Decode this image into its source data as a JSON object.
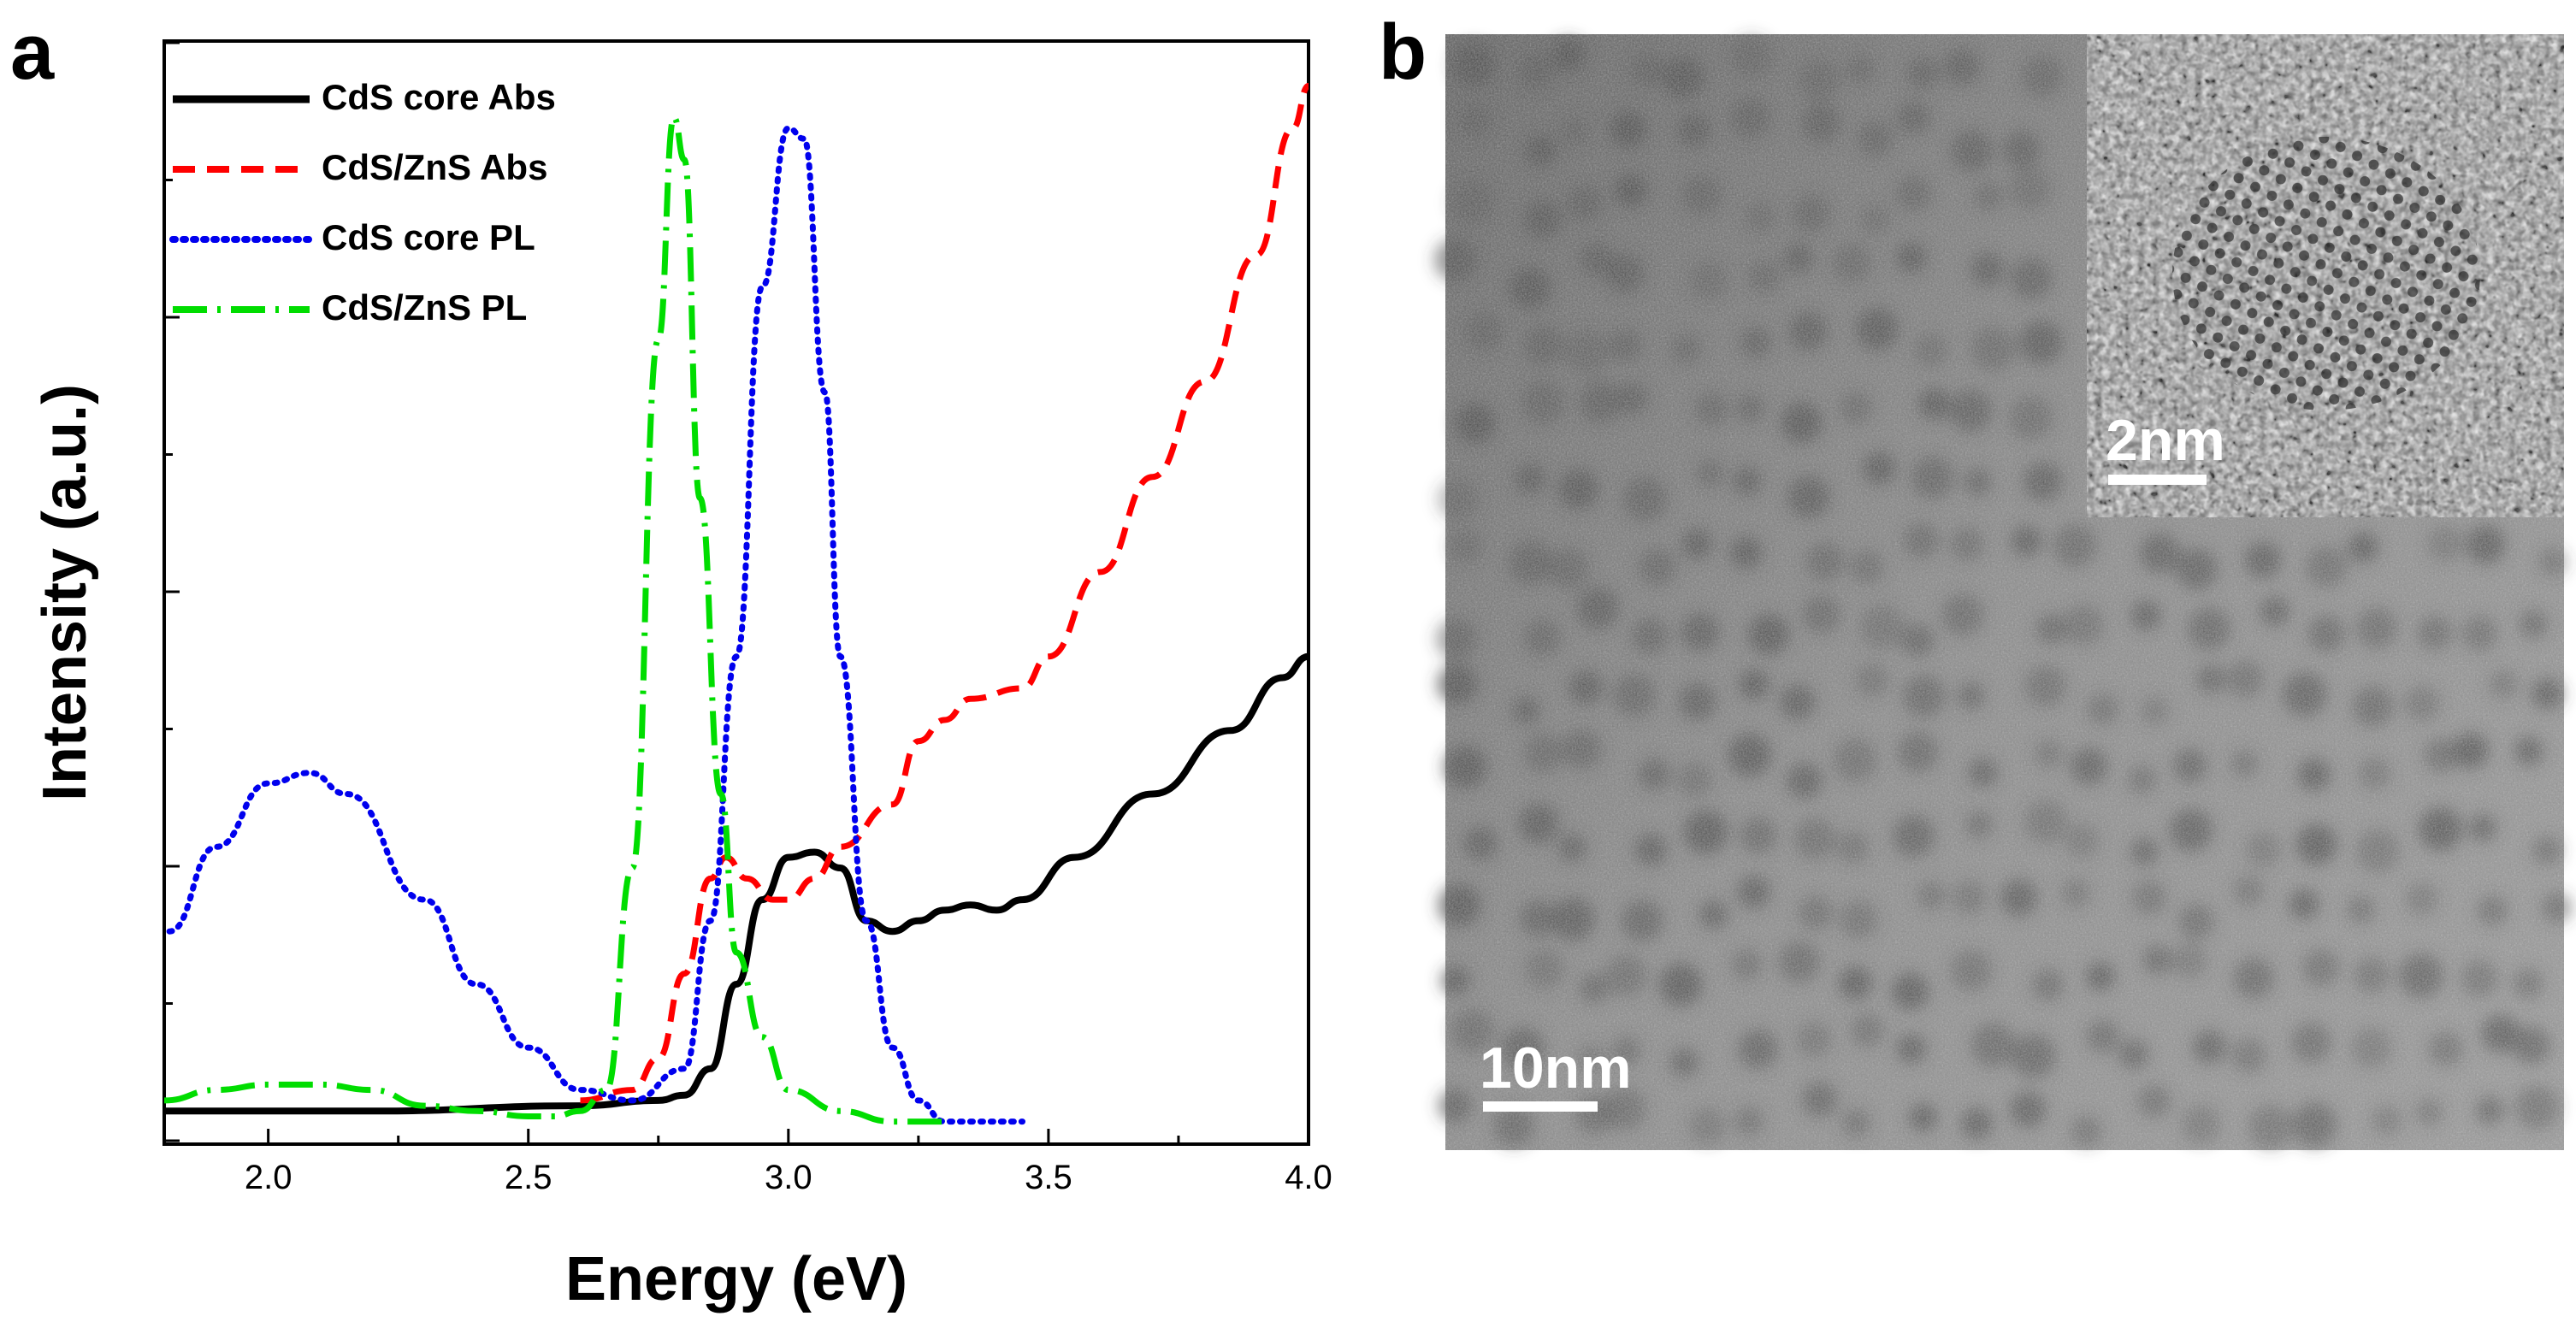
{
  "panel_a": {
    "label": "a"
  },
  "panel_b": {
    "label": "b",
    "scale_bar_main": "10nm",
    "scale_bar_inset": "2nm"
  },
  "colors": {
    "cds_core_abs": "#000000",
    "cds_zns_abs": "#ff0000",
    "cds_core_pl": "#0000ee",
    "cds_zns_pl": "#00dd00"
  },
  "chart_data": {
    "type": "line",
    "title": "",
    "xlabel": "Energy (eV)",
    "ylabel": "Intensity (a.u.)",
    "xlim": [
      1.8,
      4.0
    ],
    "ylim": [
      0,
      1.0
    ],
    "x_ticks": [
      "2.0",
      "2.5",
      "3.0",
      "3.5",
      "4.0"
    ],
    "x_tick_values": [
      2.0,
      2.5,
      3.0,
      3.5,
      4.0
    ],
    "y_tick_labels_shown": false,
    "legend_position": "top-left",
    "series": [
      {
        "name": "CdS core Abs",
        "style": "solid",
        "color": "#000000",
        "points": [
          [
            1.8,
            0.02
          ],
          [
            2.2,
            0.02
          ],
          [
            2.6,
            0.025
          ],
          [
            2.75,
            0.03
          ],
          [
            2.8,
            0.035
          ],
          [
            2.85,
            0.06
          ],
          [
            2.9,
            0.14
          ],
          [
            2.95,
            0.22
          ],
          [
            3.0,
            0.26
          ],
          [
            3.05,
            0.265
          ],
          [
            3.1,
            0.25
          ],
          [
            3.15,
            0.2
          ],
          [
            3.2,
            0.19
          ],
          [
            3.25,
            0.2
          ],
          [
            3.3,
            0.21
          ],
          [
            3.35,
            0.215
          ],
          [
            3.4,
            0.21
          ],
          [
            3.45,
            0.22
          ],
          [
            3.55,
            0.26
          ],
          [
            3.7,
            0.32
          ],
          [
            3.85,
            0.38
          ],
          [
            3.95,
            0.43
          ],
          [
            4.0,
            0.45
          ]
        ]
      },
      {
        "name": "CdS/ZnS  Abs",
        "style": "dashed",
        "color": "#ff0000",
        "points": [
          [
            2.6,
            0.03
          ],
          [
            2.7,
            0.04
          ],
          [
            2.75,
            0.07
          ],
          [
            2.8,
            0.15
          ],
          [
            2.85,
            0.24
          ],
          [
            2.88,
            0.26
          ],
          [
            2.92,
            0.24
          ],
          [
            2.97,
            0.22
          ],
          [
            3.0,
            0.22
          ],
          [
            3.05,
            0.24
          ],
          [
            3.1,
            0.27
          ],
          [
            3.2,
            0.31
          ],
          [
            3.25,
            0.37
          ],
          [
            3.3,
            0.39
          ],
          [
            3.35,
            0.41
          ],
          [
            3.45,
            0.42
          ],
          [
            3.5,
            0.45
          ],
          [
            3.6,
            0.53
          ],
          [
            3.7,
            0.62
          ],
          [
            3.8,
            0.71
          ],
          [
            3.9,
            0.83
          ],
          [
            3.97,
            0.95
          ],
          [
            4.0,
            0.99
          ]
        ]
      },
      {
        "name": "CdS core PL",
        "style": "dotted",
        "color": "#0000ee",
        "points": [
          [
            1.81,
            0.19
          ],
          [
            1.9,
            0.27
          ],
          [
            2.0,
            0.33
          ],
          [
            2.08,
            0.34
          ],
          [
            2.15,
            0.32
          ],
          [
            2.3,
            0.22
          ],
          [
            2.4,
            0.14
          ],
          [
            2.5,
            0.08
          ],
          [
            2.6,
            0.04
          ],
          [
            2.7,
            0.03
          ],
          [
            2.8,
            0.06
          ],
          [
            2.85,
            0.2
          ],
          [
            2.9,
            0.45
          ],
          [
            2.95,
            0.8
          ],
          [
            3.0,
            0.95
          ],
          [
            3.03,
            0.94
          ],
          [
            3.07,
            0.7
          ],
          [
            3.1,
            0.45
          ],
          [
            3.15,
            0.2
          ],
          [
            3.2,
            0.08
          ],
          [
            3.25,
            0.03
          ],
          [
            3.3,
            0.01
          ],
          [
            3.45,
            0.01
          ]
        ]
      },
      {
        "name": "CdS/ZnS  PL",
        "style": "dashdot",
        "color": "#00dd00",
        "points": [
          [
            1.8,
            0.03
          ],
          [
            1.9,
            0.04
          ],
          [
            2.0,
            0.045
          ],
          [
            2.1,
            0.045
          ],
          [
            2.2,
            0.04
          ],
          [
            2.3,
            0.025
          ],
          [
            2.4,
            0.02
          ],
          [
            2.5,
            0.015
          ],
          [
            2.55,
            0.015
          ],
          [
            2.6,
            0.02
          ],
          [
            2.65,
            0.04
          ],
          [
            2.7,
            0.25
          ],
          [
            2.75,
            0.75
          ],
          [
            2.78,
            0.96
          ],
          [
            2.8,
            0.92
          ],
          [
            2.83,
            0.6
          ],
          [
            2.87,
            0.32
          ],
          [
            2.9,
            0.17
          ],
          [
            2.95,
            0.09
          ],
          [
            3.0,
            0.04
          ],
          [
            3.1,
            0.02
          ],
          [
            3.2,
            0.01
          ],
          [
            3.3,
            0.01
          ]
        ]
      }
    ]
  }
}
